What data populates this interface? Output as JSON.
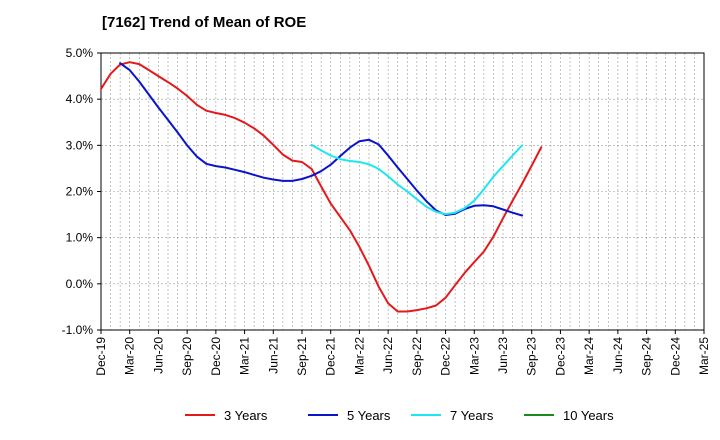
{
  "chart_data": {
    "type": "line",
    "title": "[7162]  Trend of Mean of ROE",
    "xlabel": "",
    "ylabel": "",
    "x_ticks": [
      "Dec-19",
      "Mar-20",
      "Jun-20",
      "Sep-20",
      "Dec-20",
      "Mar-21",
      "Jun-21",
      "Sep-21",
      "Dec-21",
      "Mar-22",
      "Jun-22",
      "Sep-22",
      "Dec-22",
      "Mar-23",
      "Jun-23",
      "Sep-23",
      "Dec-23",
      "Mar-24",
      "Jun-24",
      "Sep-24",
      "Dec-24",
      "Mar-25"
    ],
    "y_ticks": [
      "5.0%",
      "4.0%",
      "3.0%",
      "2.0%",
      "1.0%",
      "0.0%",
      "-1.0%"
    ],
    "y_tick_values": [
      5,
      4,
      3,
      2,
      1,
      0,
      -1
    ],
    "ylim": [
      -1,
      5
    ],
    "grid": true,
    "legend_position": "bottom",
    "colors": {
      "3 Years": "#e31a1c",
      "5 Years": "#0a14c8",
      "7 Years": "#1ee6f0",
      "10 Years": "#1a8a1a"
    },
    "series": [
      {
        "name": "3 Years",
        "values": [
          4.22,
          4.55,
          4.75,
          4.8,
          4.76,
          4.63,
          4.5,
          4.37,
          4.23,
          4.07,
          3.88,
          3.75,
          3.7,
          3.66,
          3.59,
          3.49,
          3.37,
          3.21,
          3.01,
          2.8,
          2.67,
          2.64,
          2.49,
          2.11,
          1.74,
          1.45,
          1.16,
          0.8,
          0.39,
          -0.06,
          -0.42,
          -0.6,
          -0.6,
          -0.57,
          -0.53,
          -0.47,
          -0.3,
          -0.03,
          0.24,
          0.47,
          0.7,
          1.02,
          1.42,
          1.8,
          2.17,
          2.56,
          2.96
        ]
      },
      {
        "name": "5 Years",
        "values": [
          null,
          null,
          4.78,
          4.63,
          4.38,
          4.1,
          3.82,
          3.55,
          3.28,
          3.0,
          2.76,
          2.6,
          2.55,
          2.52,
          2.47,
          2.42,
          2.36,
          2.3,
          2.26,
          2.23,
          2.23,
          2.27,
          2.34,
          2.44,
          2.58,
          2.77,
          2.95,
          3.09,
          3.12,
          3.02,
          2.78,
          2.52,
          2.27,
          2.02,
          1.79,
          1.59,
          1.49,
          1.52,
          1.62,
          1.69,
          1.7,
          1.68,
          1.61,
          1.54,
          1.48,
          null,
          null
        ]
      },
      {
        "name": "7 Years",
        "values": [
          null,
          null,
          null,
          null,
          null,
          null,
          null,
          null,
          null,
          null,
          null,
          null,
          null,
          null,
          null,
          null,
          null,
          null,
          null,
          null,
          null,
          null,
          3.01,
          2.89,
          2.78,
          2.7,
          2.66,
          2.64,
          2.59,
          2.49,
          2.33,
          2.15,
          2.0,
          1.83,
          1.67,
          1.56,
          1.51,
          1.54,
          1.64,
          1.8,
          2.05,
          2.32,
          2.55,
          2.78,
          3.0,
          null,
          null
        ]
      },
      {
        "name": "10 Years",
        "values": []
      }
    ]
  }
}
